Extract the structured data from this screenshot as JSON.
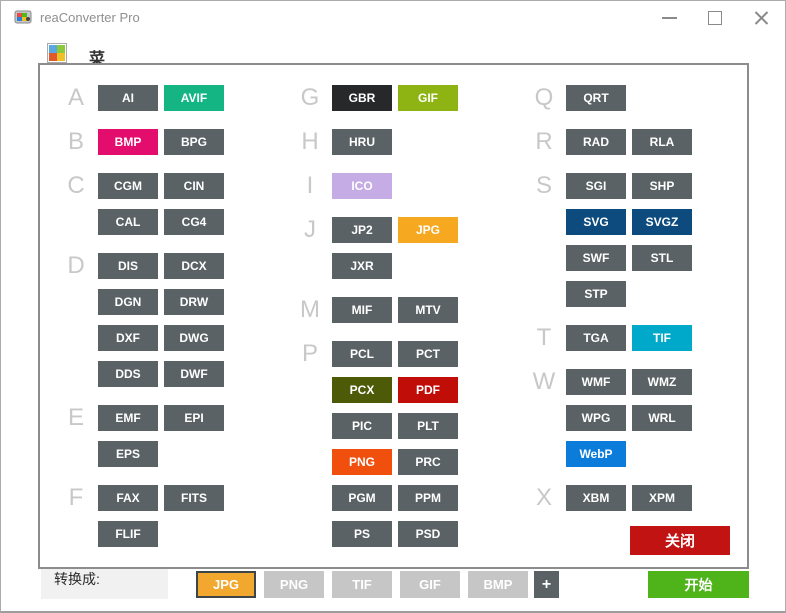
{
  "window": {
    "title": "reaConverter Pro",
    "app_icon": "reaconverter-app-icon",
    "controls": [
      {
        "name": "minimize"
      },
      {
        "name": "maximize"
      },
      {
        "name": "close"
      }
    ]
  },
  "menu_item": {
    "icon": "image-thumbnail-icon",
    "label": "菜单"
  },
  "bottom_bar": {
    "convert_label": "转换成:",
    "format_buttons": [
      {
        "label": "JPG",
        "selected": true
      },
      {
        "label": "PNG"
      },
      {
        "label": "TIF"
      },
      {
        "label": "GIF"
      },
      {
        "label": "BMP"
      }
    ],
    "add_button_label": "+",
    "start_button_label": "开始"
  },
  "dialog": {
    "default_button_bg": "#5a6266",
    "close_button": {
      "label": "关闭",
      "bg": "#c21313"
    },
    "columns": [
      {
        "rows": [
          {
            "letter": "A",
            "buttons": [
              {
                "label": "AI"
              },
              {
                "label": "AVIF",
                "bg": "#15b583"
              }
            ]
          },
          {
            "letter": "B",
            "buttons": [
              {
                "label": "BMP",
                "bg": "#e30d6e"
              },
              {
                "label": "BPG"
              }
            ]
          },
          {
            "letter": "C",
            "buttons": [
              {
                "label": "CGM"
              },
              {
                "label": "CIN"
              }
            ]
          },
          {
            "buttons": [
              {
                "label": "CAL"
              },
              {
                "label": "CG4"
              }
            ]
          },
          {
            "letter": "D",
            "buttons": [
              {
                "label": "DIS"
              },
              {
                "label": "DCX"
              }
            ]
          },
          {
            "buttons": [
              {
                "label": "DGN"
              },
              {
                "label": "DRW"
              }
            ]
          },
          {
            "buttons": [
              {
                "label": "DXF"
              },
              {
                "label": "DWG"
              }
            ]
          },
          {
            "buttons": [
              {
                "label": "DDS"
              },
              {
                "label": "DWF"
              }
            ]
          },
          {
            "letter": "E",
            "buttons": [
              {
                "label": "EMF"
              },
              {
                "label": "EPI"
              }
            ]
          },
          {
            "buttons": [
              {
                "label": "EPS"
              }
            ]
          },
          {
            "letter": "F",
            "buttons": [
              {
                "label": "FAX"
              },
              {
                "label": "FITS"
              }
            ]
          },
          {
            "buttons": [
              {
                "label": "FLIF"
              }
            ]
          }
        ]
      },
      {
        "rows": [
          {
            "letter": "G",
            "buttons": [
              {
                "label": "GBR",
                "bg": "#26282a"
              },
              {
                "label": "GIF",
                "bg": "#8db412"
              }
            ]
          },
          {
            "letter": "H",
            "buttons": [
              {
                "label": "HRU"
              }
            ]
          },
          {
            "letter": "I",
            "buttons": [
              {
                "label": "ICO",
                "bg": "#c6ace4"
              }
            ]
          },
          {
            "letter": "J",
            "buttons": [
              {
                "label": "JP2"
              },
              {
                "label": "JPG",
                "bg": "#f5a820"
              }
            ]
          },
          {
            "buttons": [
              {
                "label": "JXR"
              }
            ]
          },
          {
            "letter": "M",
            "buttons": [
              {
                "label": "MIF"
              },
              {
                "label": "MTV"
              }
            ]
          },
          {
            "letter": "P",
            "buttons": [
              {
                "label": "PCL"
              },
              {
                "label": "PCT"
              }
            ]
          },
          {
            "buttons": [
              {
                "label": "PCX",
                "bg": "#4d5a08"
              },
              {
                "label": "PDF",
                "bg": "#c00d08"
              }
            ]
          },
          {
            "buttons": [
              {
                "label": "PIC"
              },
              {
                "label": "PLT"
              }
            ]
          },
          {
            "buttons": [
              {
                "label": "PNG",
                "bg": "#f14f0e"
              },
              {
                "label": "PRC"
              }
            ]
          },
          {
            "buttons": [
              {
                "label": "PGM"
              },
              {
                "label": "PPM"
              }
            ]
          },
          {
            "buttons": [
              {
                "label": "PS"
              },
              {
                "label": "PSD"
              }
            ]
          }
        ]
      },
      {
        "rows": [
          {
            "letter": "Q",
            "buttons": [
              {
                "label": "QRT"
              }
            ]
          },
          {
            "letter": "R",
            "buttons": [
              {
                "label": "RAD"
              },
              {
                "label": "RLA"
              }
            ]
          },
          {
            "letter": "S",
            "buttons": [
              {
                "label": "SGI"
              },
              {
                "label": "SHP"
              }
            ]
          },
          {
            "buttons": [
              {
                "label": "SVG",
                "bg": "#0d4a7d"
              },
              {
                "label": "SVGZ",
                "bg": "#0d4a7d"
              }
            ]
          },
          {
            "buttons": [
              {
                "label": "SWF"
              },
              {
                "label": "STL"
              }
            ]
          },
          {
            "buttons": [
              {
                "label": "STP"
              }
            ]
          },
          {
            "letter": "T",
            "buttons": [
              {
                "label": "TGA"
              },
              {
                "label": "TIF",
                "bg": "#00a9c9"
              }
            ]
          },
          {
            "letter": "W",
            "buttons": [
              {
                "label": "WMF"
              },
              {
                "label": "WMZ"
              }
            ]
          },
          {
            "buttons": [
              {
                "label": "WPG"
              },
              {
                "label": "WRL"
              }
            ]
          },
          {
            "buttons": [
              {
                "label": "WebP",
                "bg": "#0c7cda"
              }
            ]
          },
          {
            "letter": "X",
            "buttons": [
              {
                "label": "XBM"
              },
              {
                "label": "XPM"
              }
            ]
          }
        ]
      }
    ]
  },
  "colors": {
    "selected_format_bg": "#f2a72e",
    "inactive_format_bg": "#c6c6c6",
    "add_button_bg": "#5a6266",
    "start_button_bg": "#4fb31a"
  }
}
